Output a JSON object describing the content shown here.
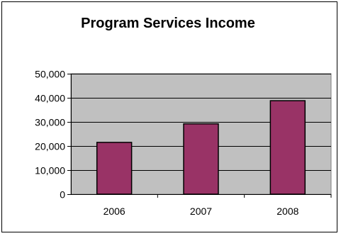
{
  "chart_data": {
    "type": "bar",
    "title": "Program Services Income",
    "xlabel": "",
    "ylabel": "",
    "categories": [
      "2006",
      "2007",
      "2008"
    ],
    "values": [
      21500,
      29200,
      38800
    ],
    "ylim": [
      0,
      50000
    ],
    "yticks": [
      0,
      10000,
      20000,
      30000,
      40000,
      50000
    ],
    "ytick_labels": [
      "0",
      "10,000",
      "20,000",
      "30,000",
      "40,000",
      "50,000"
    ],
    "grid": true,
    "legend": "none",
    "colors": {
      "bar_fill": "#993366",
      "bar_stroke": "#000000",
      "plot_background": "#c0c0c0",
      "gridline": "#000000"
    }
  }
}
